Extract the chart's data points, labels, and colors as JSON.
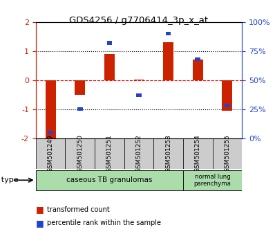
{
  "title": "GDS4256 / g7706414_3p_x_at",
  "samples": [
    "GSM501249",
    "GSM501250",
    "GSM501251",
    "GSM501252",
    "GSM501253",
    "GSM501254",
    "GSM501255"
  ],
  "red_values": [
    -2.05,
    -0.5,
    0.9,
    0.02,
    1.3,
    0.7,
    -1.05
  ],
  "blue_values": [
    5,
    25,
    82,
    37,
    90,
    68,
    28
  ],
  "ylim_left": [
    -2,
    2
  ],
  "ylim_right": [
    0,
    100
  ],
  "yticks_left": [
    -2,
    -1,
    0,
    1,
    2
  ],
  "ytick_labels_right": [
    "0%",
    "25%",
    "50%",
    "75%",
    "100%"
  ],
  "yticks_right": [
    0,
    25,
    50,
    75,
    100
  ],
  "red_color": "#CC2200",
  "blue_color": "#2244CC",
  "bar_width": 0.35,
  "group1_label": "caseous TB granulomas",
  "group2_label": "normal lung\nparenchyma",
  "group_color": "#aaddaa",
  "sample_box_color": "#cccccc",
  "legend_red": "transformed count",
  "legend_blue": "percentile rank within the sample",
  "cell_type_label": "cell type",
  "background_color": "#ffffff"
}
